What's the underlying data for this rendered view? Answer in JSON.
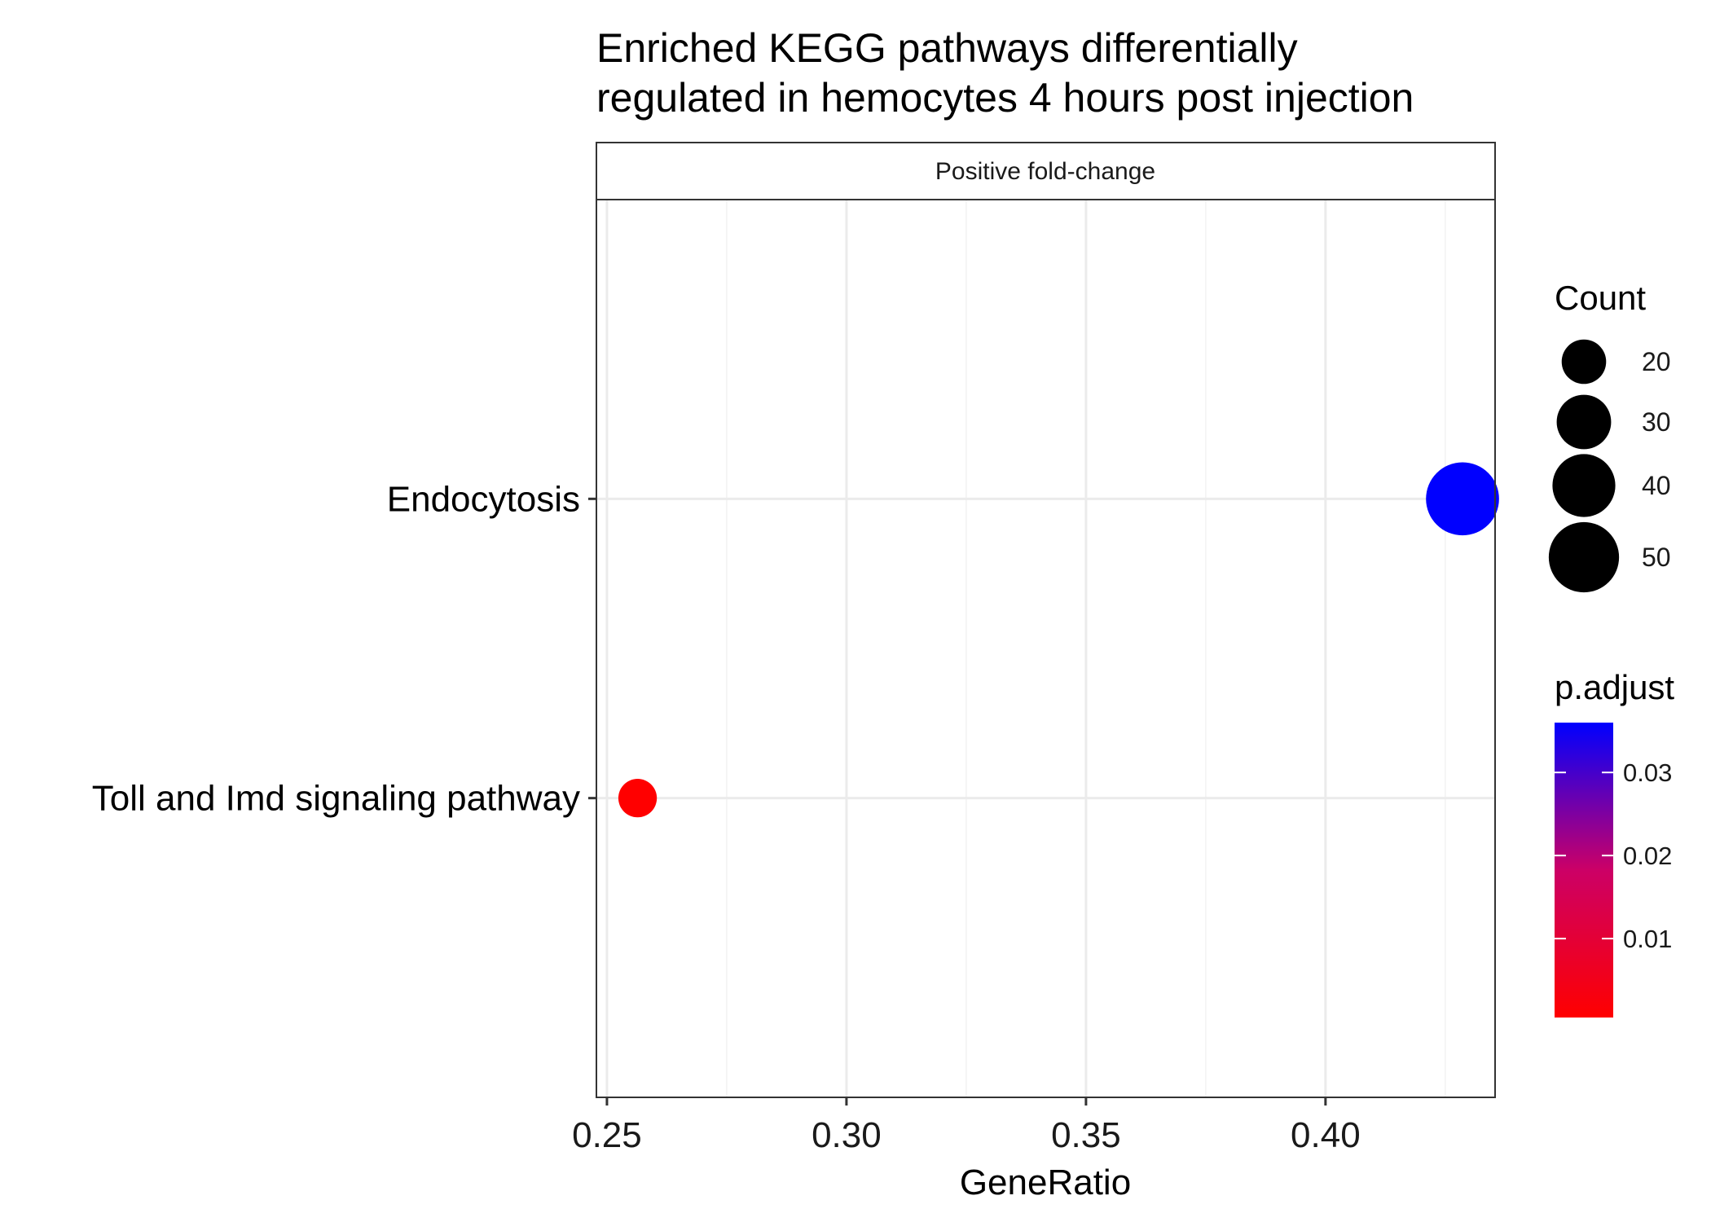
{
  "chart_data": {
    "type": "scatter",
    "title": "Enriched KEGG pathways differentially\nregulated in hemocytes 4 hours post injection",
    "facet_label": "Positive fold-change",
    "xlabel": "GeneRatio",
    "ylabel": "",
    "xlim": [
      0.2478,
      0.4354
    ],
    "x_ticks": [
      0.25,
      0.3,
      0.35,
      0.4
    ],
    "x_tick_labels": [
      "0.25",
      "0.30",
      "0.35",
      "0.40"
    ],
    "categories": [
      "Endocytosis",
      "Toll and Imd signaling pathway"
    ],
    "points": [
      {
        "category": "Endocytosis",
        "x": 0.4286,
        "count": 54,
        "p_adjust": 0.036
      },
      {
        "category": "Toll and Imd signaling pathway",
        "x": 0.2564,
        "count": 15,
        "p_adjust": 0.0005
      }
    ],
    "grid": true,
    "legend_position": "right",
    "size_legend": {
      "title": "Count",
      "values": [
        20,
        30,
        40,
        50
      ],
      "labels": [
        "20",
        "30",
        "40",
        "50"
      ],
      "color": "#000000"
    },
    "color_legend": {
      "title": "p.adjust",
      "low_color": "#ff0000",
      "high_color": "#0000ff",
      "range": [
        0.0005,
        0.036
      ],
      "ticks": [
        0.01,
        0.02,
        0.03
      ],
      "tick_labels": [
        "0.01",
        "0.02",
        "0.03"
      ]
    }
  }
}
